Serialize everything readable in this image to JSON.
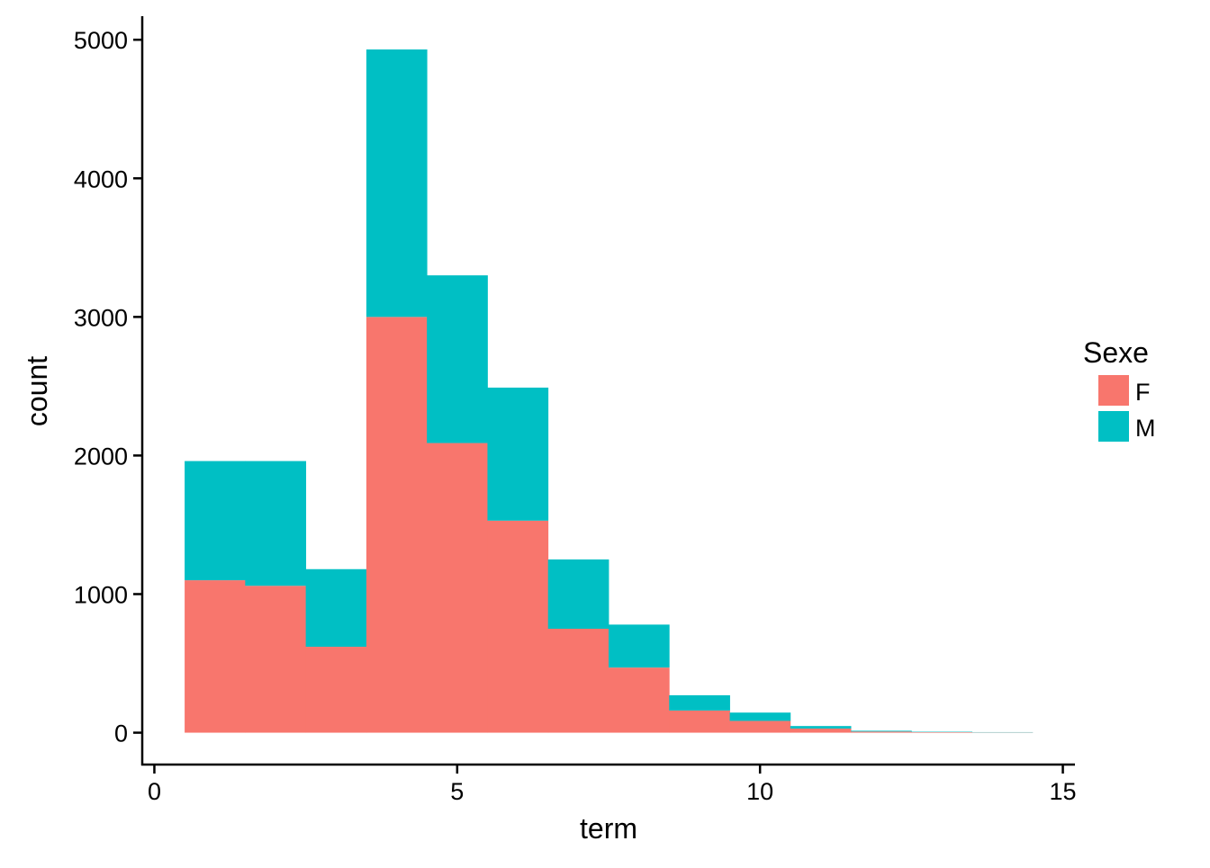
{
  "chart_data": {
    "type": "bar",
    "stacked": true,
    "histogram": true,
    "bin_width": 1,
    "x": [
      1,
      2,
      3,
      4,
      5,
      6,
      7,
      8,
      9,
      10,
      11,
      12,
      13,
      14
    ],
    "series": [
      {
        "name": "F",
        "color": "#F8766D",
        "values": [
          1100,
          1060,
          620,
          3000,
          2090,
          1530,
          750,
          470,
          160,
          85,
          30,
          8,
          4,
          2
        ]
      },
      {
        "name": "M",
        "color": "#00BFC4",
        "values": [
          860,
          900,
          560,
          1930,
          1210,
          960,
          500,
          310,
          110,
          60,
          18,
          6,
          3,
          2
        ]
      }
    ],
    "xlabel": "term",
    "ylabel": "count",
    "xlim": [
      -0.2,
      15.2
    ],
    "ylim": [
      -230,
      5170
    ],
    "xticks": [
      0,
      5,
      10,
      15
    ],
    "yticks": [
      0,
      1000,
      2000,
      3000,
      4000,
      5000
    ],
    "xtick_labels": [
      "0",
      "5",
      "10",
      "15"
    ],
    "ytick_labels": [
      "0",
      "1000",
      "2000",
      "3000",
      "4000",
      "5000"
    ],
    "grid": false,
    "legend": {
      "title": "Sexe",
      "placement": "right",
      "entries": [
        "F",
        "M"
      ]
    }
  }
}
